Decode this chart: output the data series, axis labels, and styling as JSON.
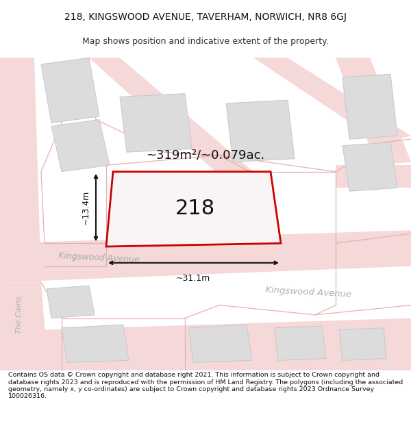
{
  "title": "218, KINGSWOOD AVENUE, TAVERHAM, NORWICH, NR8 6GJ",
  "subtitle": "Map shows position and indicative extent of the property.",
  "footer": "Contains OS data © Crown copyright and database right 2021. This information is subject to Crown copyright and database rights 2023 and is reproduced with the permission of HM Land Registry. The polygons (including the associated geometry, namely x, y co-ordinates) are subject to Crown copyright and database rights 2023 Ordnance Survey 100026316.",
  "bg_color": "#ffffff",
  "road_color": "#f5d8d8",
  "road_line_color": "#e8b0b0",
  "building_color": "#dcdcdc",
  "building_edge": "#c8c8c8",
  "highlight_color": "#cc0000",
  "area_text": "~319m²/~0.079ac.",
  "plot_label": "218",
  "dim_width": "~31.1m",
  "dim_height": "~13.4m",
  "street1": "Kingswood Avenue",
  "street2": "Kingswood Avenue",
  "street3": "The Cains",
  "title_fontsize": 10,
  "subtitle_fontsize": 9,
  "footer_fontsize": 6.8
}
